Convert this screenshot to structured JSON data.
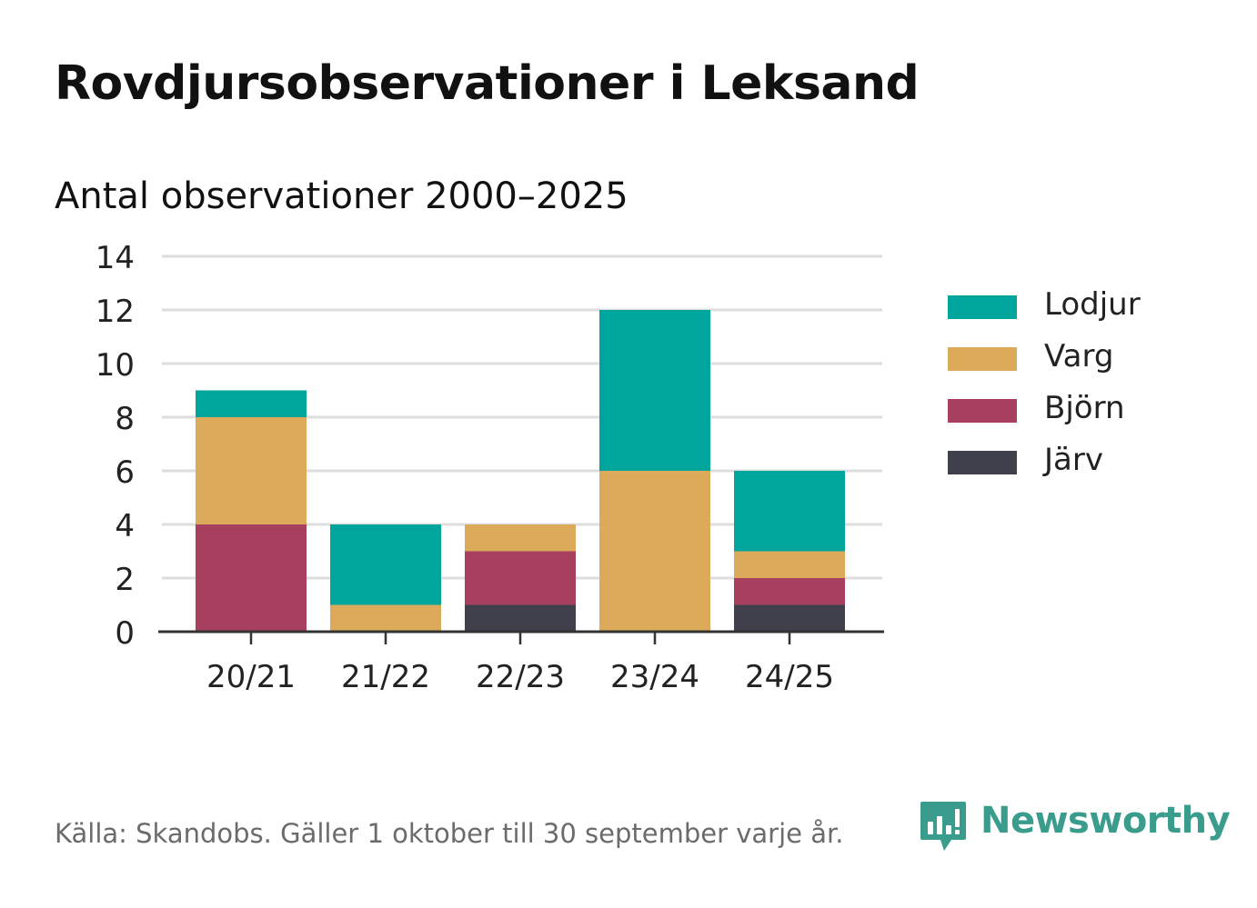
{
  "header": {
    "title": "Rovdjursobservationer i Leksand",
    "subtitle": "Antal observationer 2000–2025"
  },
  "chart_data": {
    "type": "bar",
    "stacked": true,
    "title": "Rovdjursobservationer i Leksand",
    "subtitle": "Antal observationer 2000–2025",
    "xlabel": "",
    "ylabel": "",
    "ylim": [
      0,
      14
    ],
    "yticks": [
      0,
      2,
      4,
      6,
      8,
      10,
      12,
      14
    ],
    "grid": true,
    "legend_position": "right",
    "categories": [
      "20/21",
      "21/22",
      "22/23",
      "23/24",
      "24/25"
    ],
    "series": [
      {
        "name": "Järv",
        "color": "#403f4c",
        "values": [
          0,
          0,
          1,
          0,
          1
        ]
      },
      {
        "name": "Björn",
        "color": "#a6405e",
        "values": [
          4,
          0,
          2,
          0,
          1
        ]
      },
      {
        "name": "Varg",
        "color": "#dbab5b",
        "values": [
          4,
          1,
          1,
          6,
          1
        ]
      },
      {
        "name": "Lodjur",
        "color": "#00a59b",
        "values": [
          1,
          3,
          0,
          6,
          3
        ]
      }
    ],
    "legend_order": [
      "Lodjur",
      "Varg",
      "Björn",
      "Järv"
    ]
  },
  "legend": {
    "items": [
      {
        "label": "Lodjur",
        "color": "#00a59b"
      },
      {
        "label": "Varg",
        "color": "#dbab5b"
      },
      {
        "label": "Björn",
        "color": "#a6405e"
      },
      {
        "label": "Järv",
        "color": "#403f4c"
      }
    ]
  },
  "footer": {
    "source": "Källa: Skandobs. Gäller 1 oktober till 30 september varje år.",
    "brand": "Newsworthy",
    "brand_color": "#3a9c8c"
  }
}
